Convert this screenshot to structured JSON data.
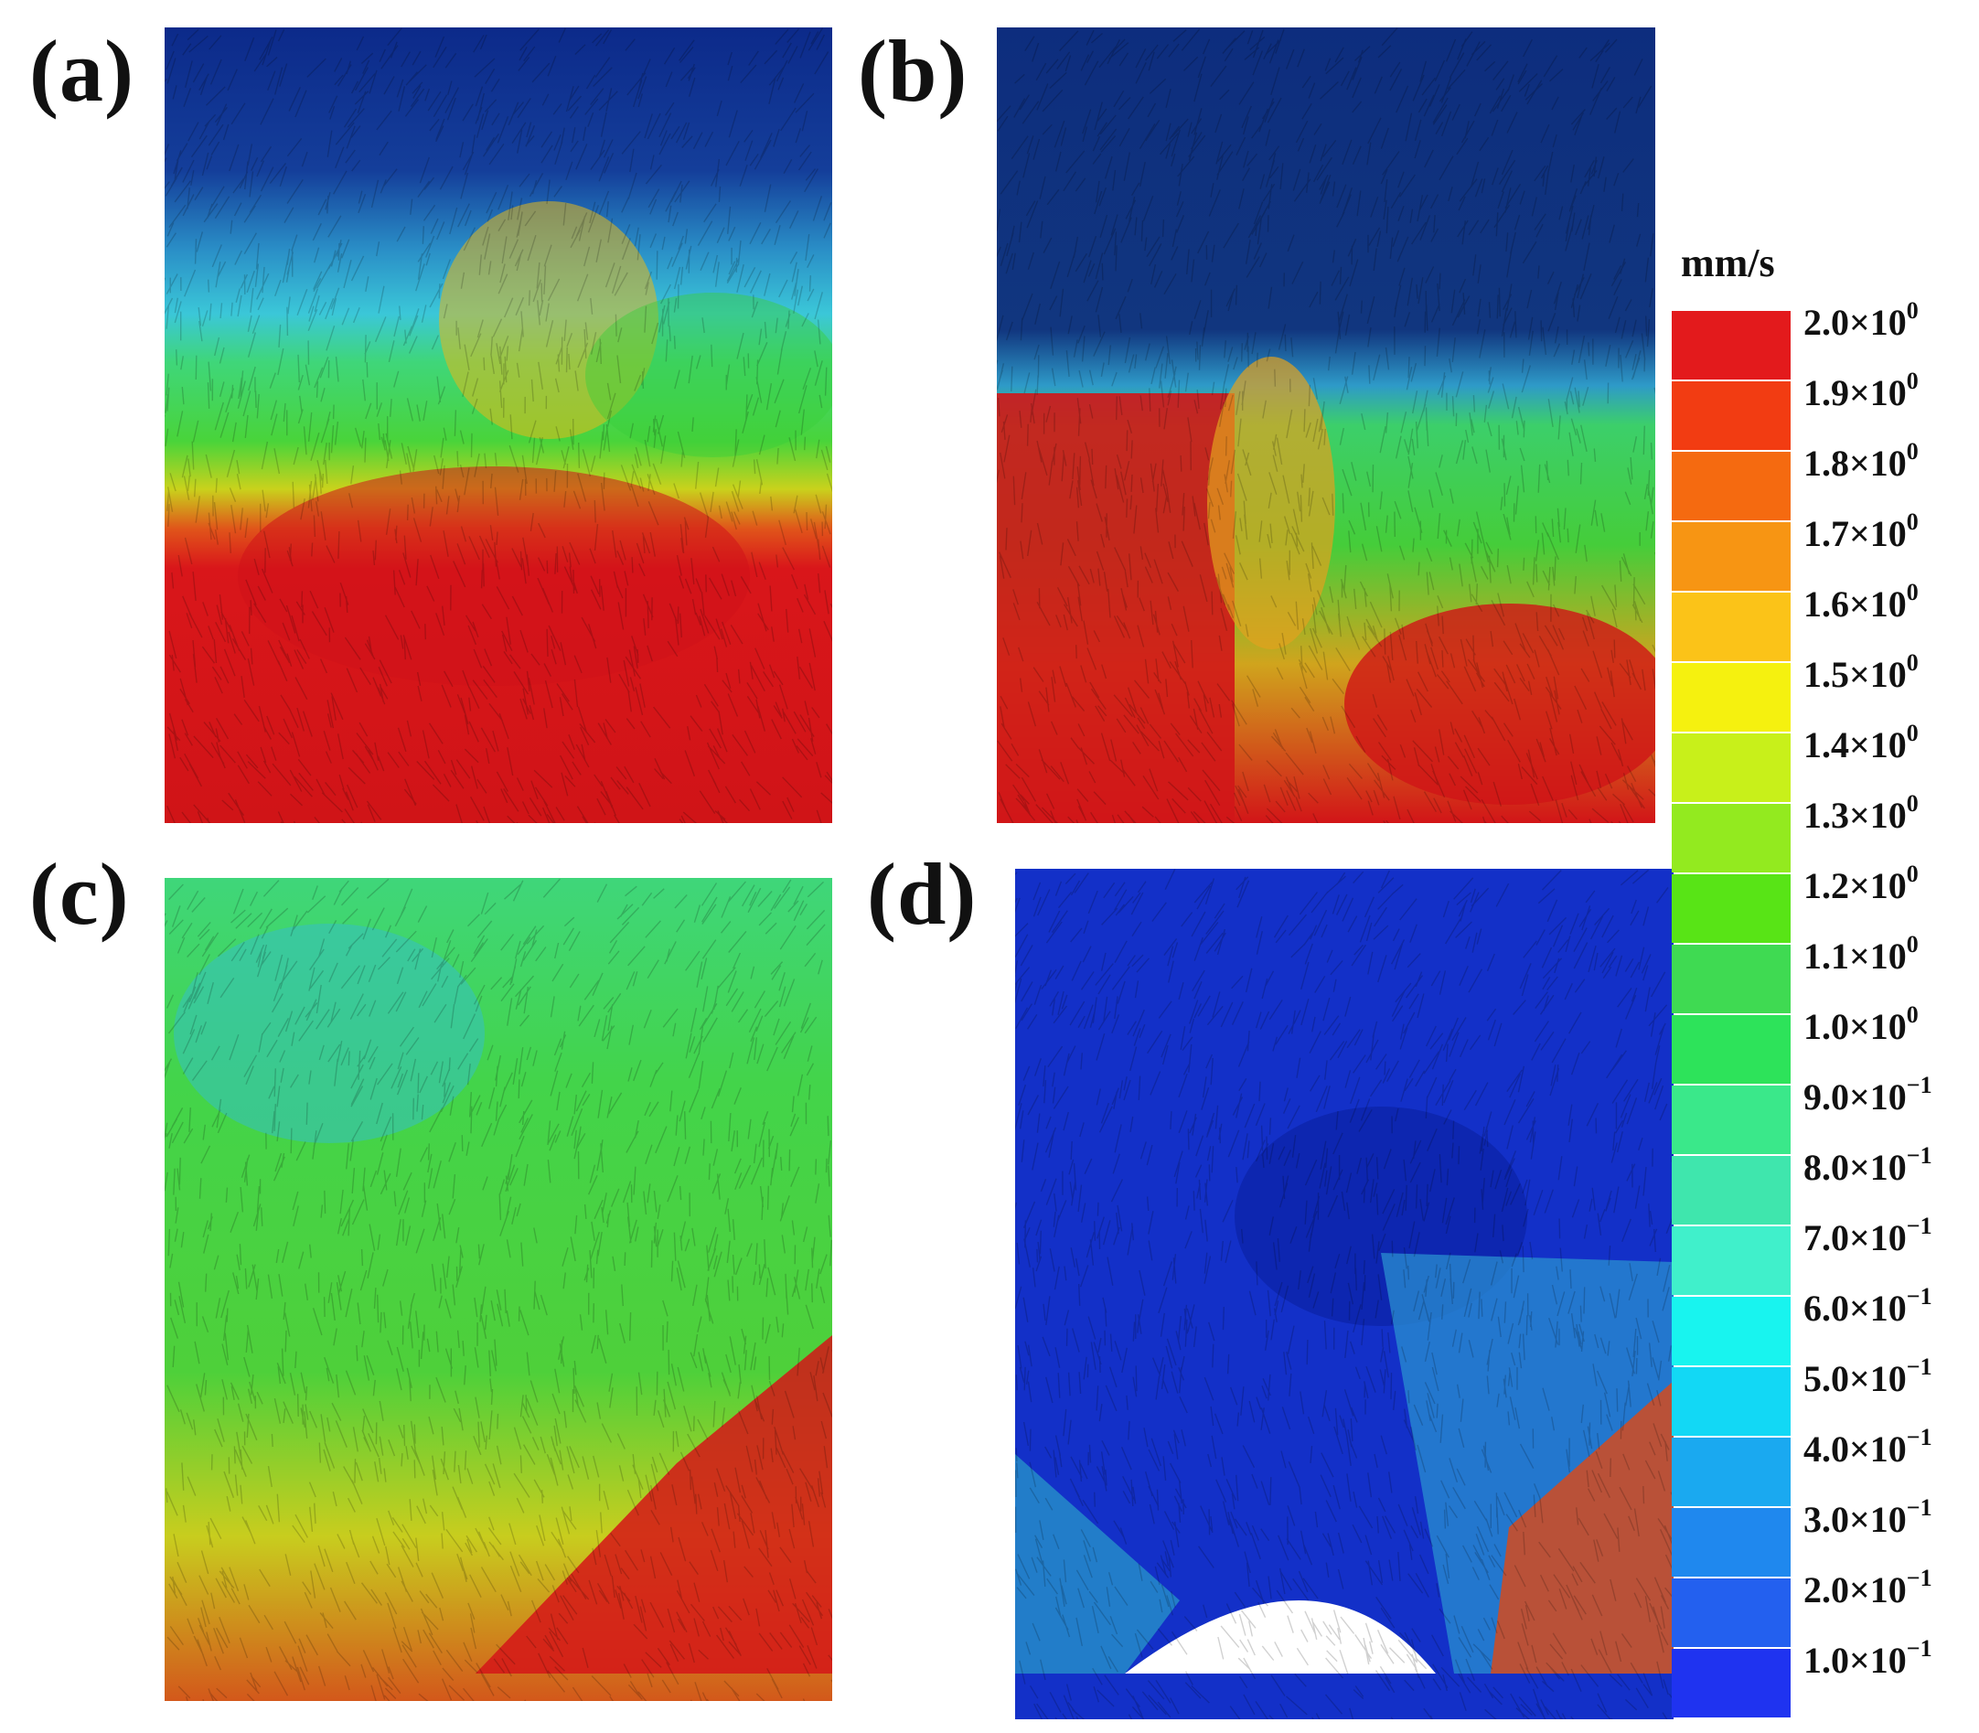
{
  "figure": {
    "panels": [
      {
        "id": "a",
        "label": "(a)"
      },
      {
        "id": "b",
        "label": "(b)"
      },
      {
        "id": "c",
        "label": "(c)"
      },
      {
        "id": "d",
        "label": "(d)"
      }
    ]
  },
  "colorbar": {
    "unit": "mm/s",
    "labels": [
      {
        "mantissa": "2.0×10",
        "exp": "0"
      },
      {
        "mantissa": "1.9×10",
        "exp": "0"
      },
      {
        "mantissa": "1.8×10",
        "exp": "0"
      },
      {
        "mantissa": "1.7×10",
        "exp": "0"
      },
      {
        "mantissa": "1.6×10",
        "exp": "0"
      },
      {
        "mantissa": "1.5×10",
        "exp": "0"
      },
      {
        "mantissa": "1.4×10",
        "exp": "0"
      },
      {
        "mantissa": "1.3×10",
        "exp": "0"
      },
      {
        "mantissa": "1.2×10",
        "exp": "0"
      },
      {
        "mantissa": "1.1×10",
        "exp": "0"
      },
      {
        "mantissa": "1.0×10",
        "exp": "0"
      },
      {
        "mantissa": "9.0×10",
        "exp": "−1"
      },
      {
        "mantissa": "8.0×10",
        "exp": "−1"
      },
      {
        "mantissa": "7.0×10",
        "exp": "−1"
      },
      {
        "mantissa": "6.0×10",
        "exp": "−1"
      },
      {
        "mantissa": "5.0×10",
        "exp": "−1"
      },
      {
        "mantissa": "4.0×10",
        "exp": "−1"
      },
      {
        "mantissa": "3.0×10",
        "exp": "−1"
      },
      {
        "mantissa": "2.0×10",
        "exp": "−1"
      },
      {
        "mantissa": "1.0×10",
        "exp": "−1"
      }
    ],
    "colors": [
      "#e31a1c",
      "#f23c12",
      "#f56a10",
      "#f79513",
      "#fbc318",
      "#f5f10f",
      "#c8f01a",
      "#93ea1f",
      "#58e416",
      "#3fda52",
      "#2de35a",
      "#3ae88a",
      "#3fe6ad",
      "#40f0cb",
      "#18f4ef",
      "#12d8f5",
      "#1aa9f0",
      "#1f88ee",
      "#2360ef",
      "#1f33f0"
    ]
  }
}
